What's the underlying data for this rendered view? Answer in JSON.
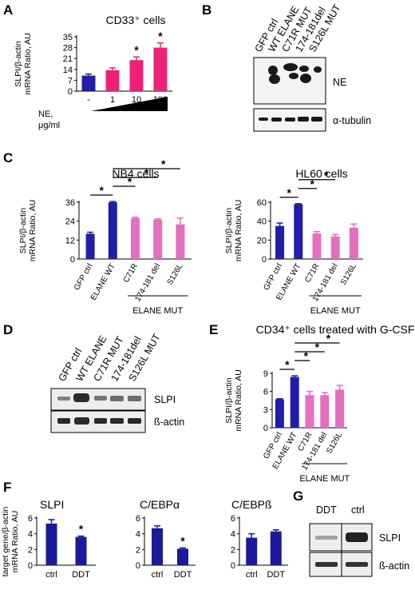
{
  "panel_labels": [
    "A",
    "B",
    "C",
    "D",
    "E",
    "F",
    "G"
  ],
  "colors": {
    "blue": "#1f1fa8",
    "magenta": "#ef1f7a",
    "pink": "#e46fc0",
    "navy": "#1a1a9a",
    "sig_star": "#000000"
  },
  "chart_data": [
    {
      "id": "A",
      "type": "bar",
      "title": "CD33⁺ cells",
      "ylabel": "SLPI/β-actin mRNA Ratio, AU",
      "xlabel": "NE, μg/ml",
      "categories": [
        "-",
        "1",
        "10",
        "100"
      ],
      "values": [
        10,
        13.5,
        20,
        28
      ],
      "errors": [
        1,
        1.5,
        2,
        3
      ],
      "bar_colors": [
        "blue",
        "magenta",
        "magenta",
        "magenta"
      ],
      "significant": [
        false,
        false,
        true,
        true
      ],
      "ylim": [
        0,
        35
      ],
      "yticks": [
        0,
        7,
        14,
        21,
        28,
        35
      ],
      "brackets": []
    },
    {
      "id": "C1",
      "type": "bar",
      "title": "NB4 cells",
      "ylabel": "SLPI/β-actin mRNA Ratio, AU",
      "categories": [
        "GFP ctrl",
        "ELANE WT",
        "C71R",
        "174-181 del",
        "S126L"
      ],
      "group_label": "ELANE MUT",
      "values": [
        16,
        36,
        26,
        25,
        22
      ],
      "errors": [
        1,
        0.5,
        0.5,
        0.5,
        4
      ],
      "bar_colors": [
        "blue",
        "blue",
        "pink",
        "pink",
        "pink"
      ],
      "ylim": [
        0,
        36
      ],
      "yticks": [
        0,
        12,
        24,
        36
      ],
      "brackets": [
        [
          0,
          1
        ],
        [
          1,
          2
        ],
        [
          1,
          3
        ],
        [
          1,
          4
        ]
      ]
    },
    {
      "id": "C2",
      "type": "bar",
      "title": "HL60 cells",
      "ylabel": "SLPI/β-actin mRNA Ratio, AU",
      "categories": [
        "GFP ctrl",
        "ELANE WT",
        "C71R",
        "174-181 del",
        "S126L"
      ],
      "group_label": "ELANE MUT",
      "values": [
        35,
        58,
        27,
        24,
        33
      ],
      "errors": [
        3,
        0.5,
        2,
        2,
        4
      ],
      "bar_colors": [
        "blue",
        "blue",
        "pink",
        "pink",
        "pink"
      ],
      "ylim": [
        0,
        60
      ],
      "yticks": [
        0,
        20,
        40,
        60
      ],
      "brackets": [
        [
          0,
          1
        ],
        [
          1,
          2
        ],
        [
          1,
          3
        ]
      ]
    },
    {
      "id": "E",
      "type": "bar",
      "title": "CD34⁺ cells treated with G-CSF",
      "ylabel": "SLPI/β-actin mRNA Ratio, AU",
      "categories": [
        "GFP ctrl",
        "ELANE WT",
        "C71R",
        "174-181 del",
        "S126L"
      ],
      "group_label": "ELANE MUT",
      "values": [
        4.7,
        8.4,
        5.4,
        5.4,
        6.3
      ],
      "errors": [
        0.1,
        0.2,
        0.6,
        0.4,
        0.7
      ],
      "bar_colors": [
        "blue",
        "blue",
        "pink",
        "pink",
        "pink"
      ],
      "ylim": [
        0,
        9
      ],
      "yticks": [
        0,
        3,
        6,
        9
      ],
      "brackets": [
        [
          0,
          1
        ],
        [
          1,
          2
        ],
        [
          1,
          3
        ],
        [
          1,
          4
        ]
      ]
    },
    {
      "id": "F1",
      "type": "bar",
      "title": "SLPI",
      "ylabel": "target gene/β-actin mRNA Ratio, AU",
      "categories": [
        "ctrl",
        "DDT"
      ],
      "values": [
        5.3,
        3.6
      ],
      "errors": [
        0.5,
        0.1
      ],
      "bar_colors": [
        "navy",
        "navy"
      ],
      "significant": [
        false,
        true
      ],
      "ylim": [
        0,
        6
      ],
      "yticks": [
        0,
        2,
        4,
        6
      ],
      "brackets": []
    },
    {
      "id": "F2",
      "type": "bar",
      "title": "C/EBPα",
      "categories": [
        "ctrl",
        "DDT"
      ],
      "values": [
        4.7,
        2.1
      ],
      "errors": [
        0.3,
        0.1
      ],
      "bar_colors": [
        "navy",
        "navy"
      ],
      "significant": [
        false,
        true
      ],
      "ylim": [
        0,
        6
      ],
      "yticks": [
        0,
        2,
        4,
        6
      ],
      "brackets": []
    },
    {
      "id": "F3",
      "type": "bar",
      "title": "C/EBPß",
      "categories": [
        "ctrl",
        "DDT"
      ],
      "values": [
        3.5,
        4.3
      ],
      "errors": [
        0.5,
        0.2
      ],
      "bar_colors": [
        "navy",
        "navy"
      ],
      "significant": [
        false,
        false
      ],
      "ylim": [
        0,
        6
      ],
      "yticks": [
        0,
        2,
        4,
        6
      ],
      "brackets": []
    }
  ],
  "blots": {
    "B": {
      "lanes": [
        "GFP ctrl",
        "WT ELANE",
        "C71R MUT",
        "174-181del",
        "S126L MUT"
      ],
      "bands": [
        "NE",
        "α-tubulin"
      ]
    },
    "D": {
      "lanes": [
        "GFP ctrl",
        "WT ELANE",
        "C71R MUT",
        "174-181del",
        "S126L MUT"
      ],
      "bands": [
        "SLPI",
        "ß-actin"
      ]
    },
    "G": {
      "lanes": [
        "DDT",
        "ctrl"
      ],
      "bands": [
        "SLPI",
        "ß-actin"
      ]
    }
  }
}
